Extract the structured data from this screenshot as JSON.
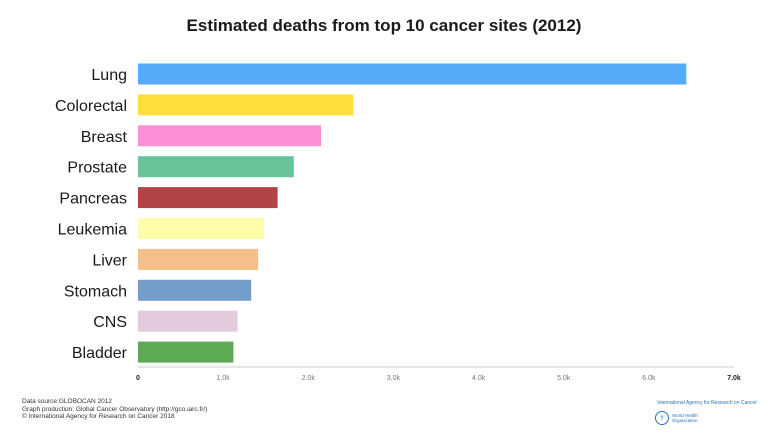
{
  "chart_data": {
    "type": "bar",
    "orientation": "horizontal",
    "title": "Estimated deaths from top 10 cancer sites (2012)",
    "categories": [
      "Lung",
      "Colorectal",
      "Breast",
      "Prostate",
      "Pancreas",
      "Leukemia",
      "Liver",
      "Stomach",
      "CNS",
      "Bladder"
    ],
    "values": [
      6440,
      2530,
      2150,
      1830,
      1640,
      1480,
      1410,
      1330,
      1170,
      1120
    ],
    "colors": [
      "#55aaf9",
      "#fedf3a",
      "#fc8fd6",
      "#66c497",
      "#b24348",
      "#fffca8",
      "#f6bf87",
      "#739ecb",
      "#e2cbdf",
      "#5da956"
    ],
    "xlim": [
      0,
      7000
    ],
    "xticks": [
      0,
      1000,
      2000,
      3000,
      4000,
      5000,
      6000,
      7000
    ],
    "xtick_labels": [
      "0",
      "1.0k",
      "2.0k",
      "3.0k",
      "4.0k",
      "5.0k",
      "6.0k",
      "7.0k"
    ],
    "xlabel": "",
    "ylabel": "",
    "grid": false
  },
  "footer": {
    "line1": "Data source:GLOBOCAN 2012",
    "line2": "Graph production: Global Cancer Observatory (http://gco.iarc.fr/)",
    "line3": "© International Agency for Research on Cancer 2018"
  },
  "logo": {
    "iarc": "International Agency for Research on Cancer",
    "who": "World Health\nOrganization",
    "emblem_icon": "who-emblem-icon"
  }
}
